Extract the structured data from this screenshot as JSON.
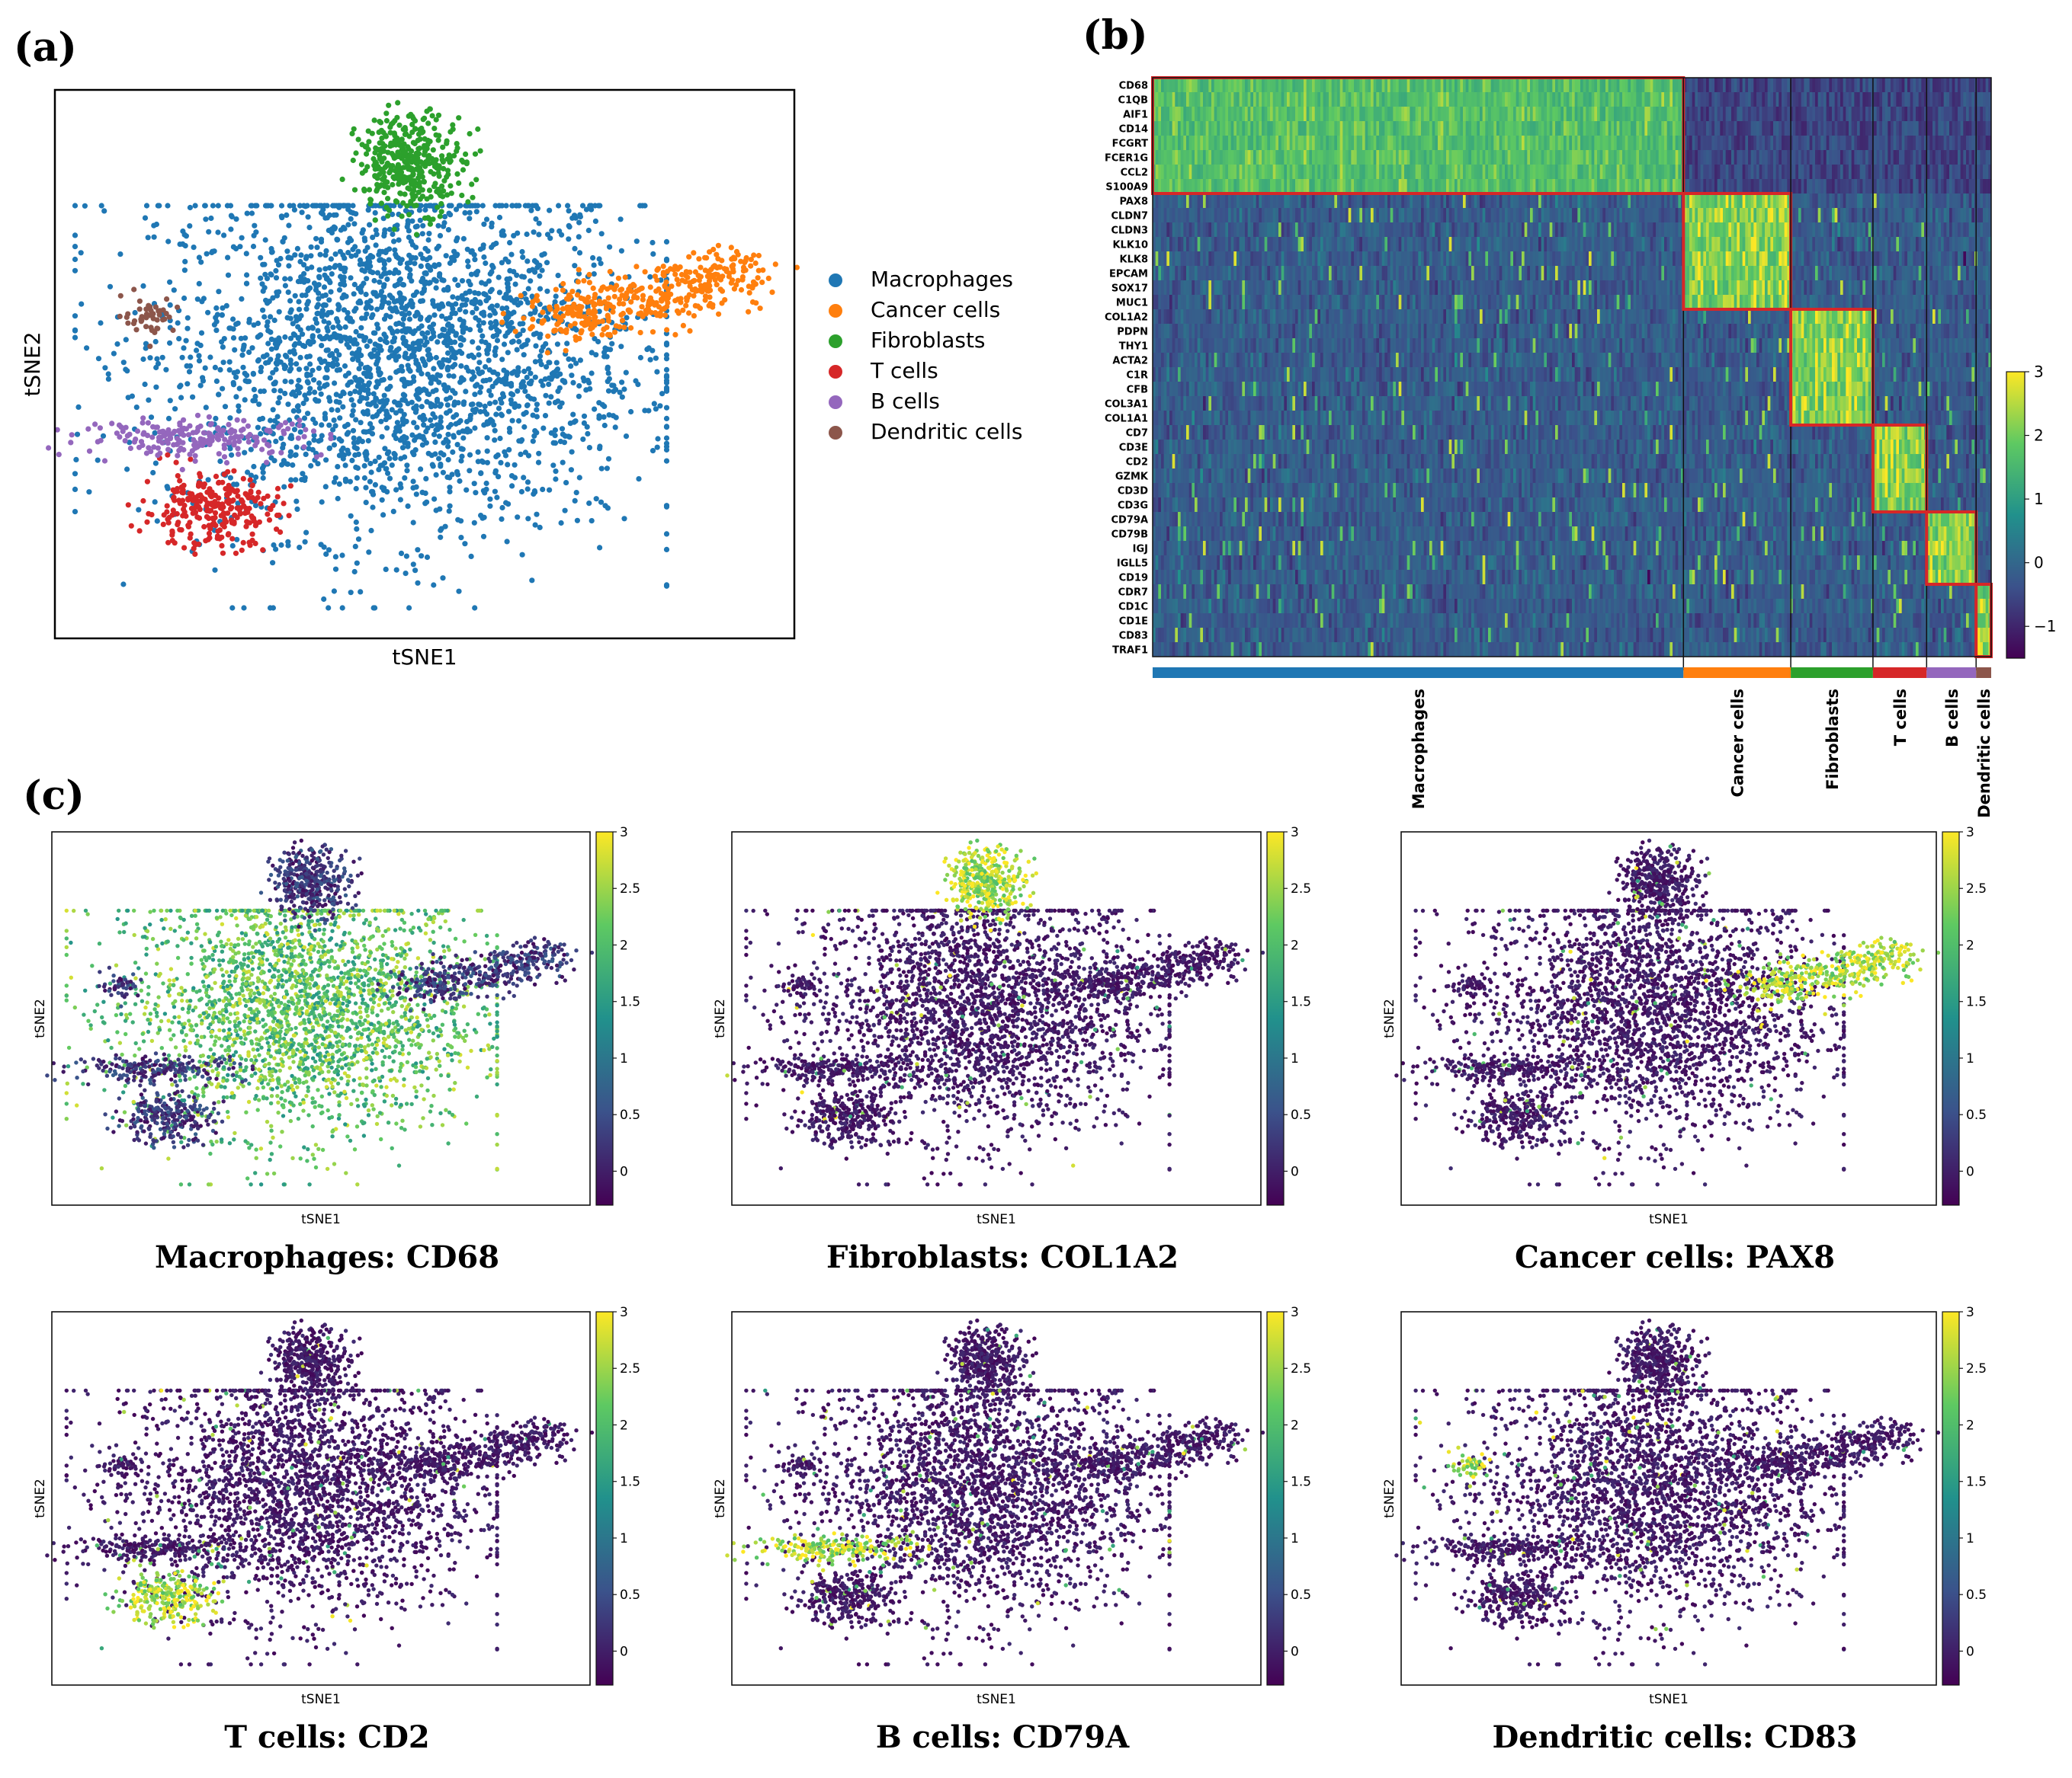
{
  "panel_labels": [
    "(a)",
    "(b)",
    "(c)"
  ],
  "colors": {
    "Macrophages": "#1f77b4",
    "Cancer cells": "#ff7f0e",
    "Fibroblasts": "#2ca02c",
    "T cells": "#d62728",
    "B cells": "#9467bd",
    "Dendritic cells": "#8c564b",
    "highlight": "#d62728"
  },
  "chart_data": [
    {
      "type": "scatter",
      "panel": "(a)",
      "xlabel": "tSNE1",
      "ylabel": "tSNE2",
      "legend_position": "right",
      "xlim": [
        -55,
        55
      ],
      "ylim": [
        -45,
        45
      ],
      "series": [
        {
          "name": "Macrophages",
          "center": [
            -4,
            2
          ],
          "spread": [
            18,
            15
          ],
          "n": 2600
        },
        {
          "name": "Cancer cells",
          "center": [
            34,
            11
          ],
          "spread": [
            8,
            4
          ],
          "n": 420
        },
        {
          "name": "Fibroblasts",
          "center": [
            -2,
            33
          ],
          "spread": [
            4,
            4
          ],
          "n": 380
        },
        {
          "name": "T cells",
          "center": [
            -32,
            -24
          ],
          "spread": [
            5,
            3
          ],
          "n": 260
        },
        {
          "name": "B cells",
          "center": [
            -33,
            -12
          ],
          "spread": [
            9,
            1.6
          ],
          "n": 200
        },
        {
          "name": "Dendritic cells",
          "center": [
            -41,
            8
          ],
          "spread": [
            2,
            1.5
          ],
          "n": 45
        }
      ]
    },
    {
      "type": "heatmap",
      "panel": "(b)",
      "genes": [
        "CD68",
        "C1QB",
        "AIF1",
        "CD14",
        "FCGRT",
        "FCER1G",
        "CCL2",
        "S100A9",
        "PAX8",
        "CLDN7",
        "CLDN3",
        "KLK10",
        "KLK8",
        "EPCAM",
        "SOX17",
        "MUC1",
        "COL1A2",
        "PDPN",
        "THY1",
        "ACTA2",
        "C1R",
        "CFB",
        "COL3A1",
        "COL1A1",
        "CD7",
        "CD3E",
        "CD2",
        "GZMK",
        "CD3D",
        "CD3G",
        "CD79A",
        "CD79B",
        "IGJ",
        "IGLL5",
        "CD19",
        "CDR7",
        "CD1C",
        "CD1E",
        "CD83",
        "TRAF1"
      ],
      "groups": [
        {
          "name": "Macrophages",
          "cells": 0.633,
          "genes": [
            0,
            8
          ]
        },
        {
          "name": "Cancer cells",
          "cells": 0.128,
          "genes": [
            8,
            16
          ]
        },
        {
          "name": "Fibroblasts",
          "cells": 0.098,
          "genes": [
            16,
            24
          ]
        },
        {
          "name": "T cells",
          "cells": 0.064,
          "genes": [
            24,
            30
          ]
        },
        {
          "name": "B cells",
          "cells": 0.059,
          "genes": [
            30,
            35
          ]
        },
        {
          "name": "Dendritic cells",
          "cells": 0.018,
          "genes": [
            35,
            40
          ]
        }
      ],
      "colorbar": {
        "min": -1.5,
        "max": 3,
        "ticks": [
          -1,
          0,
          1,
          2,
          3
        ],
        "tick_labels": [
          "−1",
          "0",
          "1",
          "2",
          "3"
        ]
      }
    },
    {
      "type": "scatter",
      "panel": "(c)",
      "xlabel": "tSNE1",
      "ylabel": "tSNE2",
      "colorbar": {
        "min": -0.3,
        "max": 3,
        "ticks": [
          0,
          0.5,
          1,
          1.5,
          2,
          2.5,
          3
        ],
        "tick_labels": [
          "0",
          "0.5",
          "1",
          "1.5",
          "2",
          "2.5",
          "3"
        ]
      },
      "subplots": [
        {
          "title": "Macrophages: CD68",
          "gene": "CD68",
          "high_group": "Macrophages"
        },
        {
          "title": "Fibroblasts: COL1A2",
          "gene": "COL1A2",
          "high_group": "Fibroblasts"
        },
        {
          "title": "Cancer cells: PAX8",
          "gene": "PAX8",
          "high_group": "Cancer cells"
        },
        {
          "title": "T cells: CD2",
          "gene": "CD2",
          "high_group": "T cells"
        },
        {
          "title": "B cells: CD79A",
          "gene": "CD79A",
          "high_group": "B cells"
        },
        {
          "title": "Dendritic cells: CD83",
          "gene": "CD83",
          "high_group": "Dendritic cells"
        }
      ]
    }
  ]
}
